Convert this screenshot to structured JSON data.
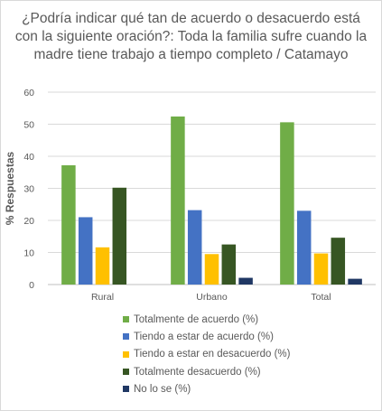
{
  "chart_data": {
    "type": "bar",
    "title": "¿Podría indicar qué tan de acuerdo o desacuerdo está con la siguiente oración?: Toda la familia sufre cuando la madre tiene trabajo a tiempo completo / Catamayo",
    "xlabel": "",
    "ylabel": "% Respuestas",
    "ylim": [
      0,
      60
    ],
    "yticks": [
      0,
      10,
      20,
      30,
      40,
      50,
      60
    ],
    "grid": true,
    "legend_position": "bottom",
    "categories": [
      "Rural",
      "Urbano",
      "Total"
    ],
    "series": [
      {
        "name": "Totalmente de acuerdo (%)",
        "color": "#70ad47",
        "values": [
          37.2,
          52.4,
          50.6
        ]
      },
      {
        "name": "Tiendo a estar de acuerdo (%)",
        "color": "#4472c4",
        "values": [
          21.0,
          23.2,
          23.0
        ]
      },
      {
        "name": "Tiendo a estar en desacuerdo (%)",
        "color": "#ffc000",
        "values": [
          11.6,
          9.5,
          9.7
        ]
      },
      {
        "name": "Totalmente desacuerdo (%)",
        "color": "#375623",
        "values": [
          30.2,
          12.5,
          14.6
        ]
      },
      {
        "name": "No lo se (%)",
        "color": "#203864",
        "values": [
          0,
          2.1,
          1.8
        ]
      }
    ]
  }
}
